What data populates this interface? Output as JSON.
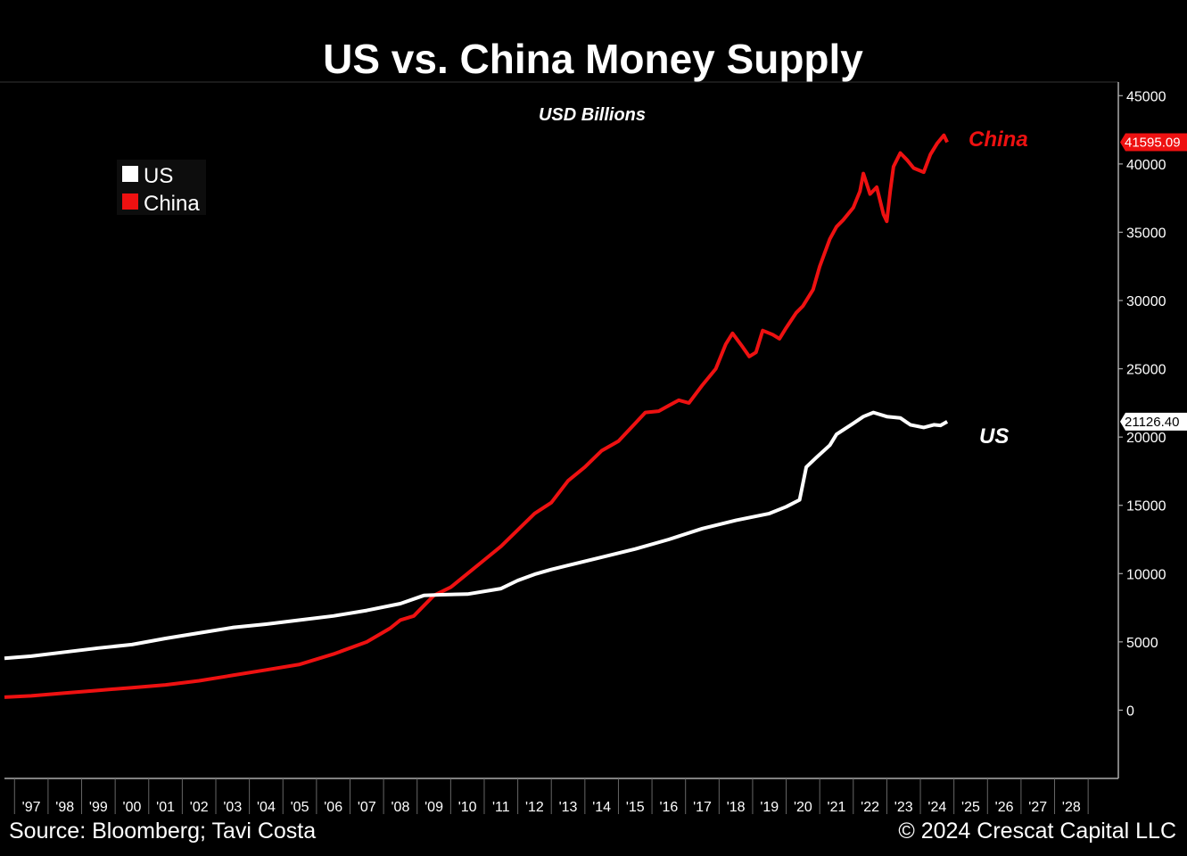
{
  "chart_data": {
    "type": "line",
    "title": "US vs. China Money Supply",
    "subtitle": "USD Billions",
    "ylabel": "USD Billions",
    "ylim": [
      -5000,
      46000
    ],
    "yticks": [
      0,
      5000,
      10000,
      15000,
      20000,
      25000,
      30000,
      35000,
      40000,
      45000
    ],
    "ytick_labels": [
      "0",
      "5000",
      "10000",
      "15000",
      "20000",
      "25000",
      "30000",
      "35000",
      "40000",
      "45000"
    ],
    "xlim": [
      1996.2,
      2029.4
    ],
    "xtick_labels": [
      "'97",
      "'98",
      "'99",
      "'00",
      "'01",
      "'02",
      "'03",
      "'04",
      "'05",
      "'06",
      "'07",
      "'08",
      "'09",
      "'10",
      "'11",
      "'12",
      "'13",
      "'14",
      "'15",
      "'16",
      "'17",
      "'18",
      "'19",
      "'20",
      "'21",
      "'22",
      "'23",
      "'24",
      "'25",
      "'26",
      "'27",
      "'28"
    ],
    "legend": {
      "position": "top-left",
      "entries": [
        {
          "name": "US",
          "color": "#ffffff"
        },
        {
          "name": "China",
          "color": "#ee1111"
        }
      ]
    },
    "series": [
      {
        "name": "US",
        "color": "#ffffff",
        "end_label": "US",
        "last_value_label": "21126.40",
        "points": [
          [
            1996.2,
            3800
          ],
          [
            1997,
            3950
          ],
          [
            1998,
            4250
          ],
          [
            1999,
            4550
          ],
          [
            2000,
            4800
          ],
          [
            2001,
            5250
          ],
          [
            2002,
            5650
          ],
          [
            2003,
            6050
          ],
          [
            2004,
            6300
          ],
          [
            2005,
            6600
          ],
          [
            2006,
            6900
          ],
          [
            2007,
            7300
          ],
          [
            2008,
            7800
          ],
          [
            2008.7,
            8400
          ],
          [
            2009.2,
            8450
          ],
          [
            2010,
            8500
          ],
          [
            2011,
            8900
          ],
          [
            2011.5,
            9500
          ],
          [
            2012,
            9950
          ],
          [
            2012.5,
            10300
          ],
          [
            2013,
            10600
          ],
          [
            2014,
            11200
          ],
          [
            2015,
            11800
          ],
          [
            2016,
            12500
          ],
          [
            2017,
            13300
          ],
          [
            2018,
            13900
          ],
          [
            2019,
            14400
          ],
          [
            2019.5,
            14900
          ],
          [
            2019.9,
            15400
          ],
          [
            2020.1,
            17800
          ],
          [
            2020.4,
            18500
          ],
          [
            2020.8,
            19400
          ],
          [
            2021,
            20200
          ],
          [
            2021.5,
            21000
          ],
          [
            2021.8,
            21500
          ],
          [
            2022.1,
            21800
          ],
          [
            2022.5,
            21500
          ],
          [
            2022.9,
            21400
          ],
          [
            2023.2,
            20900
          ],
          [
            2023.6,
            20700
          ],
          [
            2023.9,
            20900
          ],
          [
            2024.1,
            20850
          ],
          [
            2024.3,
            21126.4
          ]
        ]
      },
      {
        "name": "China",
        "color": "#ee1111",
        "end_label": "China",
        "last_value_label": "41595.09",
        "points": [
          [
            1996.2,
            950
          ],
          [
            1997,
            1050
          ],
          [
            1998,
            1250
          ],
          [
            1999,
            1450
          ],
          [
            2000,
            1650
          ],
          [
            2001,
            1850
          ],
          [
            2002,
            2150
          ],
          [
            2003,
            2550
          ],
          [
            2004,
            2950
          ],
          [
            2005,
            3350
          ],
          [
            2006,
            4100
          ],
          [
            2007,
            5000
          ],
          [
            2007.7,
            6000
          ],
          [
            2008,
            6600
          ],
          [
            2008.4,
            6900
          ],
          [
            2009,
            8400
          ],
          [
            2009.5,
            9000
          ],
          [
            2010,
            10000
          ],
          [
            2010.5,
            11000
          ],
          [
            2011,
            12000
          ],
          [
            2011.5,
            13200
          ],
          [
            2012,
            14400
          ],
          [
            2012.5,
            15200
          ],
          [
            2013,
            16800
          ],
          [
            2013.5,
            17800
          ],
          [
            2014,
            19000
          ],
          [
            2014.5,
            19700
          ],
          [
            2015,
            21000
          ],
          [
            2015.3,
            21800
          ],
          [
            2015.7,
            21900
          ],
          [
            2016,
            22300
          ],
          [
            2016.3,
            22700
          ],
          [
            2016.6,
            22500
          ],
          [
            2017,
            23800
          ],
          [
            2017.4,
            25000
          ],
          [
            2017.7,
            26800
          ],
          [
            2017.9,
            27600
          ],
          [
            2018.2,
            26600
          ],
          [
            2018.4,
            25900
          ],
          [
            2018.6,
            26200
          ],
          [
            2018.8,
            27800
          ],
          [
            2019.1,
            27500
          ],
          [
            2019.3,
            27200
          ],
          [
            2019.5,
            28000
          ],
          [
            2019.8,
            29100
          ],
          [
            2020,
            29600
          ],
          [
            2020.3,
            30800
          ],
          [
            2020.5,
            32500
          ],
          [
            2020.8,
            34500
          ],
          [
            2021,
            35400
          ],
          [
            2021.2,
            35900
          ],
          [
            2021.5,
            36800
          ],
          [
            2021.7,
            38000
          ],
          [
            2021.8,
            39300
          ],
          [
            2022,
            37800
          ],
          [
            2022.2,
            38300
          ],
          [
            2022.4,
            36300
          ],
          [
            2022.5,
            35800
          ],
          [
            2022.6,
            38000
          ],
          [
            2022.7,
            39800
          ],
          [
            2022.9,
            40800
          ],
          [
            2023.1,
            40300
          ],
          [
            2023.3,
            39700
          ],
          [
            2023.6,
            39400
          ],
          [
            2023.8,
            40700
          ],
          [
            2024,
            41500
          ],
          [
            2024.2,
            42100
          ],
          [
            2024.3,
            41595.09
          ]
        ]
      }
    ]
  },
  "footer": {
    "source": "Source: Bloomberg; Tavi Costa",
    "copyright": "© 2024 Crescat Capital LLC"
  }
}
